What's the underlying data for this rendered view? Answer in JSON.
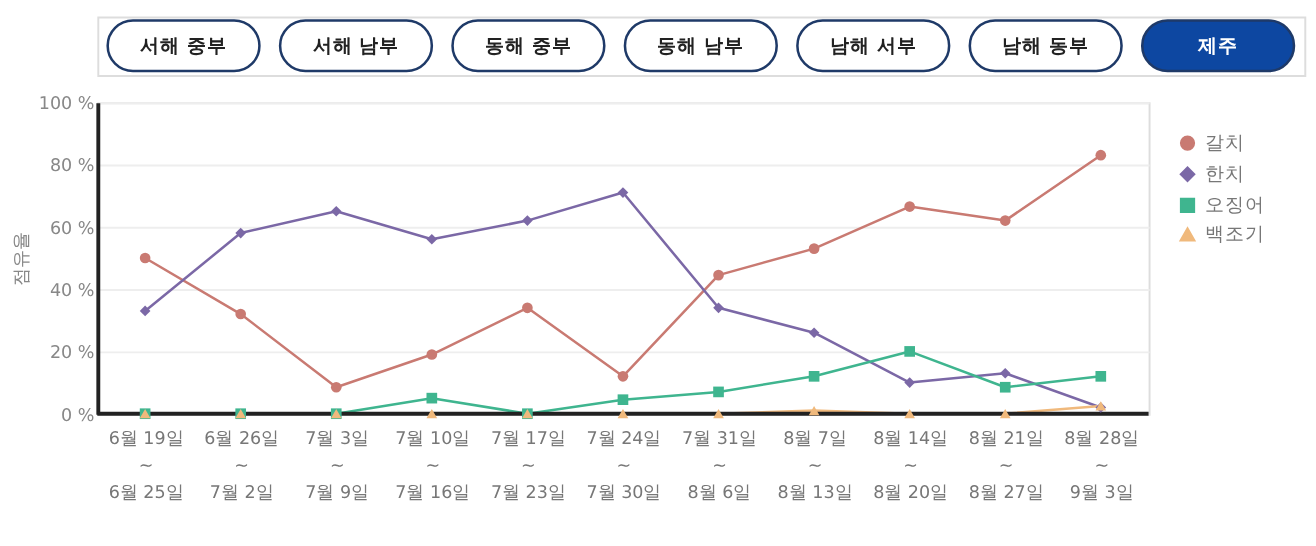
{
  "chart_data": {
    "type": "line",
    "ylabel": "점유율",
    "annotations": [
      "서해 중부",
      "서해 남부",
      "동해 중부",
      "동해 남부",
      "남해 서부",
      "남해 동부",
      "제주"
    ],
    "categories": [
      "6월 19일\n~\n6월 25일",
      "6월 26일\n~\n7월 2일",
      "7월 3일\n~\n7월 9일",
      "7월 10일\n~\n7월 16일",
      "7월 17일\n~\n7월 23일",
      "7월 24일\n~\n7월 30일",
      "7월 31일\n~\n8월 6일",
      "8월 7일\n~\n8월 13일",
      "8월 14일\n~\n8월 20일",
      "8월 21일\n~\n8월 27일",
      "8월 28일\n~\n9월 3일"
    ],
    "series": [
      {
        "name": "갈치",
        "color": "#c97a72",
        "marker": "circle",
        "values": [
          50,
          32,
          8.5,
          19,
          34,
          12,
          44.5,
          53,
          66.5,
          62,
          83
        ]
      },
      {
        "name": "한치",
        "color": "#7b68a6",
        "marker": "diamond",
        "values": [
          33,
          58,
          65,
          56,
          62,
          71,
          34,
          26,
          10,
          13,
          2
        ]
      },
      {
        "name": "오징어",
        "color": "#3fb58f",
        "marker": "square",
        "values": [
          0,
          0,
          0,
          5,
          0,
          4.5,
          7,
          12,
          20,
          8.5,
          12
        ]
      },
      {
        "name": "백조기",
        "color": "#f0b97c",
        "marker": "triangle",
        "values": [
          0,
          0,
          0,
          0,
          0,
          0,
          0,
          1,
          0,
          0,
          2.5
        ]
      }
    ],
    "ylim": [
      0,
      100
    ],
    "yticks": [
      {
        "value": 0,
        "label": "0 %"
      },
      {
        "value": 20,
        "label": "20 %"
      },
      {
        "value": 40,
        "label": "40 %"
      },
      {
        "value": 60,
        "label": "60 %"
      },
      {
        "value": 80,
        "label": "80 %"
      },
      {
        "value": 100,
        "label": "100 %"
      }
    ],
    "grid": "y",
    "legend": "right",
    "line_style": "solid"
  }
}
